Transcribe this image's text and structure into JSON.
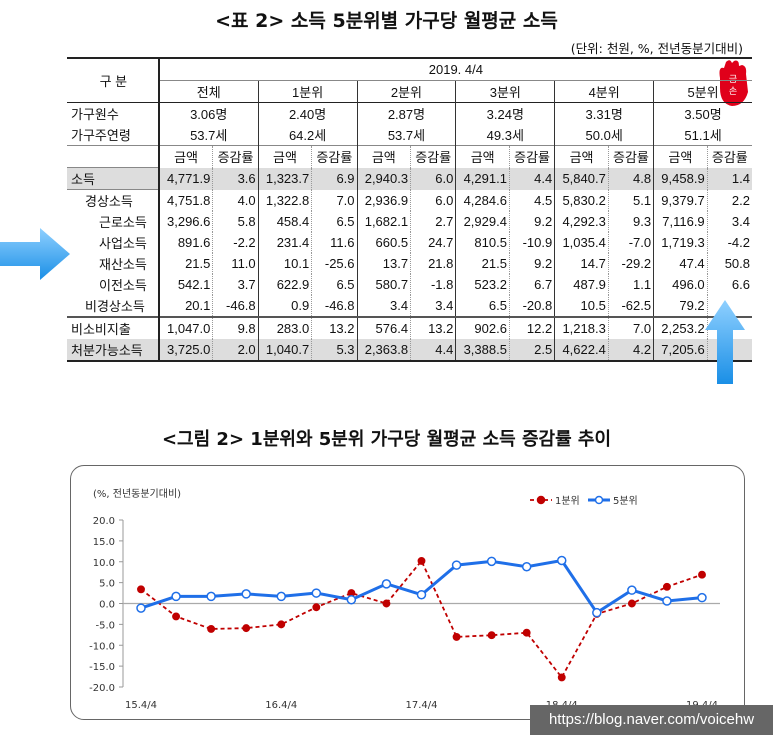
{
  "table": {
    "title": "<표 2> 소득 5분위별 가구당 월평균 소득",
    "unit": "(단위: 천원, %, 전년동분기대비)",
    "category_header": "구   분",
    "period": "2019. 4/4",
    "groups": [
      "전체",
      "1분위",
      "2분위",
      "3분위",
      "4분위",
      "5분위"
    ],
    "members": [
      "3.06명",
      "2.40명",
      "2.87명",
      "3.24명",
      "3.31명",
      "3.50명"
    ],
    "members_label": "가구원수",
    "age_label": "가구주연령",
    "ages": [
      "53.7세",
      "64.2세",
      "53.7세",
      "49.3세",
      "50.0세",
      "51.1세"
    ],
    "sub_amount": "금액",
    "sub_rate": "증감률",
    "rows": [
      {
        "label": "소득",
        "indent": 0,
        "values": [
          "4,771.9",
          "3.6",
          "1,323.7",
          "6.9",
          "2,940.3",
          "6.0",
          "4,291.1",
          "4.4",
          "5,840.7",
          "4.8",
          "9,458.9",
          "1.4"
        ]
      },
      {
        "label": "경상소득",
        "indent": 1,
        "values": [
          "4,751.8",
          "4.0",
          "1,322.8",
          "7.0",
          "2,936.9",
          "6.0",
          "4,284.6",
          "4.5",
          "5,830.2",
          "5.1",
          "9,379.7",
          "2.2"
        ]
      },
      {
        "label": "근로소득",
        "indent": 2,
        "values": [
          "3,296.6",
          "5.8",
          "458.4",
          "6.5",
          "1,682.1",
          "2.7",
          "2,929.4",
          "9.2",
          "4,292.3",
          "9.3",
          "7,116.9",
          "3.4"
        ]
      },
      {
        "label": "사업소득",
        "indent": 2,
        "values": [
          "891.6",
          "-2.2",
          "231.4",
          "11.6",
          "660.5",
          "24.7",
          "810.5",
          "-10.9",
          "1,035.4",
          "-7.0",
          "1,719.3",
          "-4.2"
        ]
      },
      {
        "label": "재산소득",
        "indent": 2,
        "values": [
          "21.5",
          "11.0",
          "10.1",
          "-25.6",
          "13.7",
          "21.8",
          "21.5",
          "9.2",
          "14.7",
          "-29.2",
          "47.4",
          "50.8"
        ]
      },
      {
        "label": "이전소득",
        "indent": 2,
        "values": [
          "542.1",
          "3.7",
          "622.9",
          "6.5",
          "580.7",
          "-1.8",
          "523.2",
          "6.7",
          "487.9",
          "1.1",
          "496.0",
          "6.6"
        ]
      },
      {
        "label": "비경상소득",
        "indent": 1,
        "values": [
          "20.1",
          "-46.8",
          "0.9",
          "-46.8",
          "3.4",
          "3.4",
          "6.5",
          "-20.8",
          "10.5",
          "-62.5",
          "79.2",
          ""
        ]
      },
      {
        "label": "비소비지출",
        "indent": 0,
        "values": [
          "1,047.0",
          "9.8",
          "283.0",
          "13.2",
          "576.4",
          "13.2",
          "902.6",
          "12.2",
          "1,218.3",
          "7.0",
          "2,253.2",
          ""
        ]
      },
      {
        "label": "처분가능소득",
        "indent": 0,
        "values": [
          "3,725.0",
          "2.0",
          "1,040.7",
          "5.3",
          "2,363.8",
          "4.4",
          "3,388.5",
          "2.5",
          "4,622.4",
          "4.2",
          "7,205.6",
          ""
        ]
      }
    ]
  },
  "chart_data": {
    "type": "line",
    "title": "<그림 2> 1분위와 5분위 가구당 월평균 소득 증감률 추이",
    "ylabel": "(%, 전년동분기대비)",
    "ylim": [
      -20,
      20
    ],
    "yticks": [
      "20.0",
      "15.0",
      "10.0",
      "5.0",
      "0.0",
      "-5.0",
      "-10.0",
      "-15.0",
      "-20.0"
    ],
    "xtick_labels": [
      "15.4/4",
      "16.4/4",
      "17.4/4",
      "18.4/4",
      "19.4/4"
    ],
    "legend": "top-right",
    "series": [
      {
        "name": "1분위",
        "color": "#c00000",
        "style": "dashed",
        "values": [
          3.4,
          -3.1,
          -6.1,
          -5.9,
          -5.0,
          -0.9,
          2.5,
          0.0,
          10.2,
          -8.0,
          -7.6,
          -7.0,
          -17.7,
          -2.5,
          -0.0,
          4.0,
          6.9
        ]
      },
      {
        "name": "5분위",
        "color": "#1f6fe8",
        "style": "solid",
        "values": [
          -1.1,
          1.7,
          1.7,
          2.3,
          1.7,
          2.5,
          0.9,
          4.7,
          2.1,
          9.2,
          10.1,
          8.8,
          10.3,
          -2.2,
          3.2,
          0.6,
          1.4
        ]
      }
    ]
  },
  "logo_text": "금손",
  "watermark": "https://blog.naver.com/voicehw"
}
